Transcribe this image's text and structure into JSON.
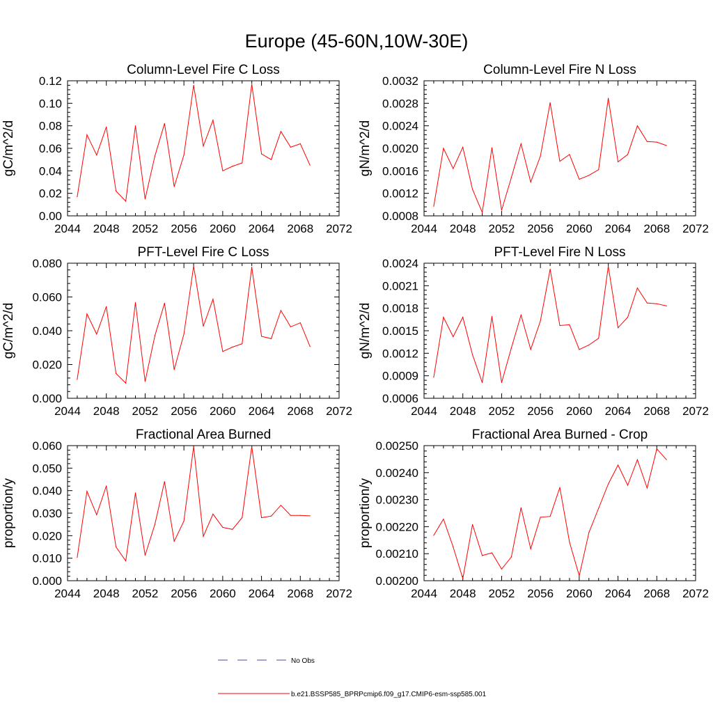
{
  "figure": {
    "title": "Europe (45-60N,10W-30E)"
  },
  "legend": {
    "entries": [
      {
        "label": "No Obs",
        "color": "#4a4aa0",
        "style": "dashed"
      },
      {
        "label": "b.e21.BSSP585_BPRPcmip6.f09_g17.CMIP6-esm-ssp585.001",
        "color": "#ff0000",
        "style": "solid"
      }
    ]
  },
  "chart_data": [
    {
      "type": "line",
      "title": "Column-Level Fire C Loss",
      "xlabel": "",
      "ylabel": "gC/m^2/d",
      "xlim": [
        2044,
        2072
      ],
      "ylim": [
        0.0,
        0.12
      ],
      "xticks": [
        2044,
        2048,
        2052,
        2056,
        2060,
        2064,
        2068,
        2072
      ],
      "yticks": [
        "0.00",
        "0.02",
        "0.04",
        "0.06",
        "0.08",
        "0.10",
        "0.12"
      ],
      "x": [
        2045,
        2046,
        2047,
        2048,
        2049,
        2050,
        2051,
        2052,
        2053,
        2054,
        2055,
        2056,
        2057,
        2058,
        2059,
        2060,
        2061,
        2062,
        2063,
        2064,
        2065,
        2066,
        2067,
        2068,
        2069
      ],
      "series": [
        {
          "name": "b.e21.BSSP585_BPRPcmip6.f09_g17.CMIP6-esm-ssp585.001",
          "color": "#ff0000",
          "values": [
            0.017,
            0.072,
            0.054,
            0.079,
            0.022,
            0.013,
            0.08,
            0.015,
            0.053,
            0.082,
            0.026,
            0.054,
            0.116,
            0.062,
            0.085,
            0.04,
            0.044,
            0.047,
            0.117,
            0.055,
            0.05,
            0.075,
            0.061,
            0.064,
            0.045
          ]
        }
      ]
    },
    {
      "type": "line",
      "title": "Column-Level Fire N Loss",
      "xlabel": "",
      "ylabel": "gN/m^2/d",
      "xlim": [
        2044,
        2072
      ],
      "ylim": [
        0.0008,
        0.0032
      ],
      "xticks": [
        2044,
        2048,
        2052,
        2056,
        2060,
        2064,
        2068,
        2072
      ],
      "yticks": [
        "0.0008",
        "0.0012",
        "0.0016",
        "0.0020",
        "0.0024",
        "0.0028",
        "0.0032"
      ],
      "x": [
        2045,
        2046,
        2047,
        2048,
        2049,
        2050,
        2051,
        2052,
        2053,
        2054,
        2055,
        2056,
        2057,
        2058,
        2059,
        2060,
        2061,
        2062,
        2063,
        2064,
        2065,
        2066,
        2067,
        2068,
        2069
      ],
      "series": [
        {
          "name": "b.e21.BSSP585_BPRPcmip6.f09_g17.CMIP6-esm-ssp585.001",
          "color": "#ff0000",
          "values": [
            0.00097,
            0.002,
            0.00164,
            0.00202,
            0.00127,
            0.00086,
            0.00201,
            0.0009,
            0.00148,
            0.00208,
            0.0014,
            0.00186,
            0.00281,
            0.00177,
            0.00189,
            0.00145,
            0.00152,
            0.00162,
            0.00289,
            0.00176,
            0.00189,
            0.0024,
            0.00212,
            0.00211,
            0.00205
          ]
        }
      ]
    },
    {
      "type": "line",
      "title": "PFT-Level Fire C Loss",
      "xlabel": "",
      "ylabel": "gC/m^2/d",
      "xlim": [
        2044,
        2072
      ],
      "ylim": [
        0.0,
        0.08
      ],
      "xticks": [
        2044,
        2048,
        2052,
        2056,
        2060,
        2064,
        2068,
        2072
      ],
      "yticks": [
        "0.000",
        "0.020",
        "0.040",
        "0.060",
        "0.080"
      ],
      "x": [
        2045,
        2046,
        2047,
        2048,
        2049,
        2050,
        2051,
        2052,
        2053,
        2054,
        2055,
        2056,
        2057,
        2058,
        2059,
        2060,
        2061,
        2062,
        2063,
        2064,
        2065,
        2066,
        2067,
        2068,
        2069
      ],
      "series": [
        {
          "name": "b.e21.BSSP585_BPRPcmip6.f09_g17.CMIP6-esm-ssp585.001",
          "color": "#ff0000",
          "values": [
            0.0113,
            0.05,
            0.038,
            0.0543,
            0.0147,
            0.009,
            0.0567,
            0.01,
            0.037,
            0.0563,
            0.017,
            0.038,
            0.0783,
            0.0427,
            0.0587,
            0.0277,
            0.0303,
            0.0323,
            0.0777,
            0.0367,
            0.0353,
            0.052,
            0.0423,
            0.0447,
            0.0307
          ]
        }
      ]
    },
    {
      "type": "line",
      "title": "PFT-Level Fire N Loss",
      "xlabel": "",
      "ylabel": "gN/m^2/d",
      "xlim": [
        2044,
        2072
      ],
      "ylim": [
        0.0006,
        0.0024
      ],
      "xticks": [
        2044,
        2048,
        2052,
        2056,
        2060,
        2064,
        2068,
        2072
      ],
      "yticks": [
        "0.0006",
        "0.0009",
        "0.0012",
        "0.0015",
        "0.0018",
        "0.0021",
        "0.0024"
      ],
      "x": [
        2045,
        2046,
        2047,
        2048,
        2049,
        2050,
        2051,
        2052,
        2053,
        2054,
        2055,
        2056,
        2057,
        2058,
        2059,
        2060,
        2061,
        2062,
        2063,
        2064,
        2065,
        2066,
        2067,
        2068,
        2069
      ],
      "series": [
        {
          "name": "b.e21.BSSP585_BPRPcmip6.f09_g17.CMIP6-esm-ssp585.001",
          "color": "#ff0000",
          "values": [
            0.00088,
            0.00168,
            0.00142,
            0.00168,
            0.00118,
            0.00081,
            0.00169,
            0.00081,
            0.00127,
            0.00171,
            0.00125,
            0.00163,
            0.00232,
            0.00157,
            0.00158,
            0.00125,
            0.00131,
            0.0014,
            0.00236,
            0.00154,
            0.00168,
            0.00207,
            0.00187,
            0.00186,
            0.00183
          ]
        }
      ]
    },
    {
      "type": "line",
      "title": "Fractional Area Burned",
      "xlabel": "",
      "ylabel": "proportion/y",
      "xlim": [
        2044,
        2072
      ],
      "ylim": [
        0.0,
        0.06
      ],
      "xticks": [
        2044,
        2048,
        2052,
        2056,
        2060,
        2064,
        2068,
        2072
      ],
      "yticks": [
        "0.000",
        "0.010",
        "0.020",
        "0.030",
        "0.040",
        "0.050",
        "0.060"
      ],
      "x": [
        2045,
        2046,
        2047,
        2048,
        2049,
        2050,
        2051,
        2052,
        2053,
        2054,
        2055,
        2056,
        2057,
        2058,
        2059,
        2060,
        2061,
        2062,
        2063,
        2064,
        2065,
        2066,
        2067,
        2068,
        2069
      ],
      "series": [
        {
          "name": "b.e21.BSSP585_BPRPcmip6.f09_g17.CMIP6-esm-ssp585.001",
          "color": "#ff0000",
          "values": [
            0.0104,
            0.0397,
            0.0293,
            0.0421,
            0.015,
            0.0088,
            0.039,
            0.0113,
            0.025,
            0.044,
            0.0175,
            0.0265,
            0.0596,
            0.0197,
            0.0296,
            0.0237,
            0.0228,
            0.028,
            0.0596,
            0.028,
            0.0287,
            0.0335,
            0.029,
            0.029,
            0.0288
          ]
        }
      ]
    },
    {
      "type": "line",
      "title": "Fractional Area Burned - Crop",
      "xlabel": "",
      "ylabel": "proportion/y",
      "xlim": [
        2044,
        2072
      ],
      "ylim": [
        0.002,
        0.0025
      ],
      "xticks": [
        2044,
        2048,
        2052,
        2056,
        2060,
        2064,
        2068,
        2072
      ],
      "yticks": [
        "0.00200",
        "0.00210",
        "0.00220",
        "0.00230",
        "0.00240",
        "0.00250"
      ],
      "x": [
        2045,
        2046,
        2047,
        2048,
        2049,
        2050,
        2051,
        2052,
        2053,
        2054,
        2055,
        2056,
        2057,
        2058,
        2059,
        2060,
        2061,
        2062,
        2063,
        2064,
        2065,
        2066,
        2067,
        2068,
        2069
      ],
      "series": [
        {
          "name": "b.e21.BSSP585_BPRPcmip6.f09_g17.CMIP6-esm-ssp585.001",
          "color": "#ff0000",
          "values": [
            0.002168,
            0.002228,
            0.002125,
            0.002008,
            0.002208,
            0.002093,
            0.002103,
            0.002043,
            0.002088,
            0.00227,
            0.002118,
            0.002235,
            0.002238,
            0.002345,
            0.002143,
            0.002018,
            0.002178,
            0.002268,
            0.002358,
            0.002428,
            0.002353,
            0.002448,
            0.002343,
            0.002488,
            0.002448
          ]
        }
      ]
    }
  ]
}
